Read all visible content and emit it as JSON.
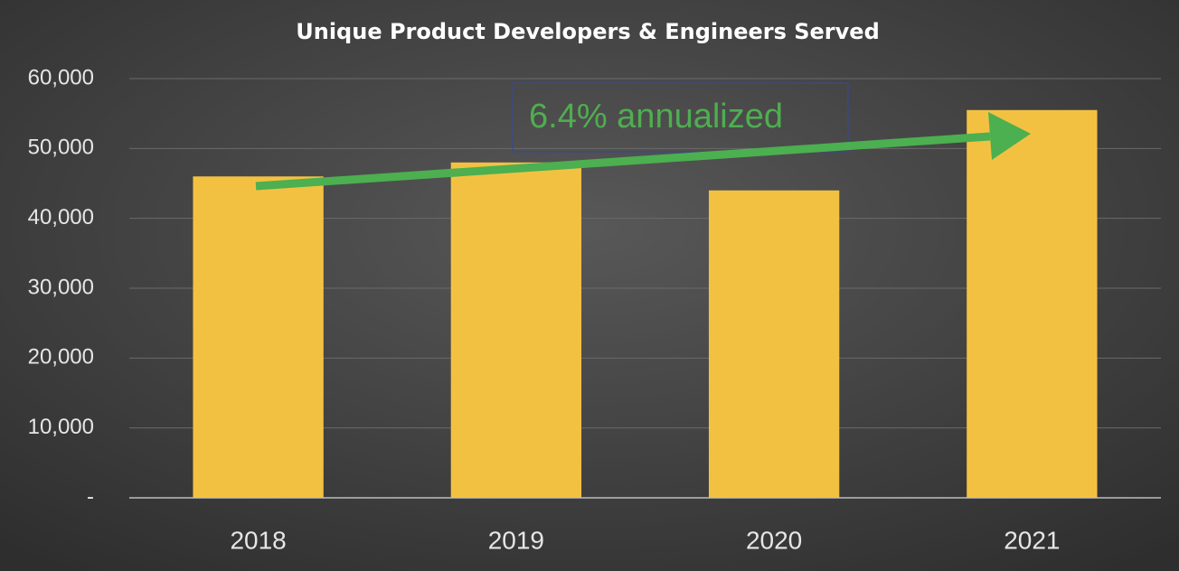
{
  "chart_data": {
    "type": "bar",
    "title": "Unique Product Developers & Engineers Served",
    "categories": [
      "2018",
      "2019",
      "2020",
      "2021"
    ],
    "values": [
      46000,
      48000,
      44000,
      55500
    ],
    "color": "#f3c142",
    "ylim": [
      0,
      60000
    ],
    "yticks": [
      {
        "value": 0,
        "label": "-"
      },
      {
        "value": 10000,
        "label": "10,000"
      },
      {
        "value": 20000,
        "label": "20,000"
      },
      {
        "value": 30000,
        "label": "30,000"
      },
      {
        "value": 40000,
        "label": "40,000"
      },
      {
        "value": 50000,
        "label": "50,000"
      },
      {
        "value": 60000,
        "label": "60,000"
      }
    ],
    "grid": true,
    "annotation": "6.4% annualized"
  }
}
